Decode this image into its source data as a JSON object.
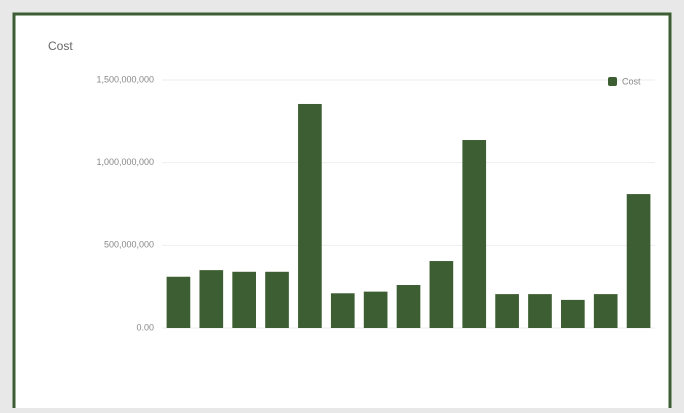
{
  "chart_data": {
    "type": "bar",
    "title": "Cost",
    "categories": [
      null,
      null,
      null,
      null,
      null,
      null,
      null,
      null,
      null,
      null,
      null,
      null,
      null,
      null,
      null
    ],
    "series": [
      {
        "name": "Cost",
        "color": "#3d5e32",
        "values": [
          310000000,
          350000000,
          340000000,
          340000000,
          1355000000,
          210000000,
          220000000,
          260000000,
          405000000,
          1137000000,
          205000000,
          205000000,
          170000000,
          205000000,
          810000000
        ]
      }
    ],
    "ylim": [
      0,
      1500000000
    ],
    "yticks": [
      {
        "value": 0,
        "label": "0.00"
      },
      {
        "value": 500000000,
        "label": "500,000,000"
      },
      {
        "value": 1000000000,
        "label": "1,000,000,000"
      },
      {
        "value": 1500000000,
        "label": "1,500,000,000"
      }
    ],
    "grid": true,
    "legend": "top-right"
  }
}
